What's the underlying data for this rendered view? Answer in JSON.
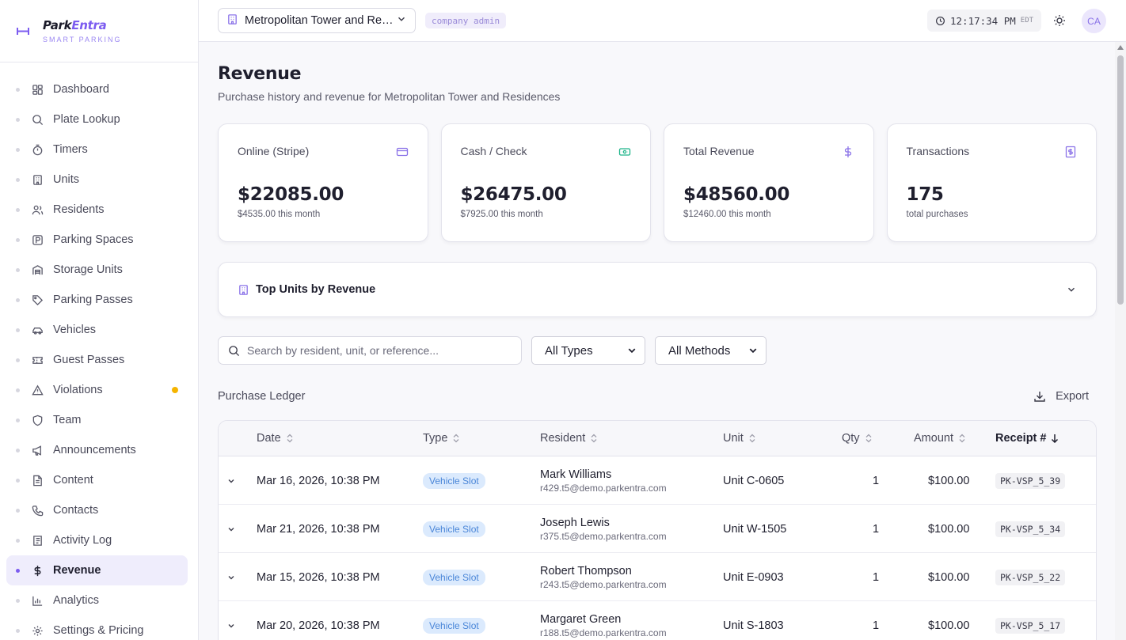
{
  "brand": {
    "name_part1": "Park",
    "name_part2": "Entra",
    "tagline": "SMART PARKING"
  },
  "sidebar": {
    "items": [
      {
        "label": "Dashboard",
        "icon": "dashboard-icon"
      },
      {
        "label": "Plate Lookup",
        "icon": "search-icon"
      },
      {
        "label": "Timers",
        "icon": "timer-icon"
      },
      {
        "label": "Units",
        "icon": "building-icon"
      },
      {
        "label": "Residents",
        "icon": "users-icon"
      },
      {
        "label": "Parking Spaces",
        "icon": "parking-icon"
      },
      {
        "label": "Storage Units",
        "icon": "warehouse-icon"
      },
      {
        "label": "Parking Passes",
        "icon": "tag-icon"
      },
      {
        "label": "Vehicles",
        "icon": "car-icon"
      },
      {
        "label": "Guest Passes",
        "icon": "ticket-icon"
      },
      {
        "label": "Violations",
        "icon": "alert-triangle-icon"
      },
      {
        "label": "Team",
        "icon": "shield-icon"
      },
      {
        "label": "Announcements",
        "icon": "megaphone-icon"
      },
      {
        "label": "Content",
        "icon": "document-icon"
      },
      {
        "label": "Contacts",
        "icon": "phone-icon"
      },
      {
        "label": "Activity Log",
        "icon": "log-icon"
      },
      {
        "label": "Revenue",
        "icon": "dollar-icon"
      },
      {
        "label": "Analytics",
        "icon": "bar-chart-icon"
      },
      {
        "label": "Settings & Pricing",
        "icon": "gear-icon"
      }
    ],
    "active": "Revenue"
  },
  "topbar": {
    "property": "Metropolitan Tower and Residences",
    "role": "company admin",
    "time": "12:17:34 PM",
    "timezone": "EDT",
    "avatar_initials": "CA"
  },
  "page": {
    "title": "Revenue",
    "subtitle": "Purchase history and revenue for Metropolitan Tower and Residences"
  },
  "cards": [
    {
      "title": "Online (Stripe)",
      "value": "$22085.00",
      "sub": "$4535.00 this month",
      "icon": "credit-card-icon"
    },
    {
      "title": "Cash / Check",
      "value": "$26475.00",
      "sub": "$7925.00 this month",
      "icon": "banknote-icon"
    },
    {
      "title": "Total Revenue",
      "value": "$48560.00",
      "sub": "$12460.00 this month",
      "icon": "dollar-icon"
    },
    {
      "title": "Transactions",
      "value": "175",
      "sub": "total purchases",
      "icon": "receipt-icon"
    }
  ],
  "top_units": {
    "label": "Top Units by Revenue"
  },
  "filters": {
    "search_placeholder": "Search by resident, unit, or reference...",
    "type_selected": "All Types",
    "method_selected": "All Methods"
  },
  "ledger": {
    "title": "Purchase Ledger",
    "export_label": "Export",
    "columns": [
      "Date",
      "Type",
      "Resident",
      "Unit",
      "Qty",
      "Amount",
      "Receipt #"
    ],
    "rows": [
      {
        "date": "Mar 16, 2026, 10:38 PM",
        "type": "Vehicle Slot",
        "name": "Mark Williams",
        "email": "r429.t5@demo.parkentra.com",
        "unit": "Unit C-0605",
        "qty": "1",
        "amount": "$100.00",
        "receipt": "PK-VSP_5_39"
      },
      {
        "date": "Mar 21, 2026, 10:38 PM",
        "type": "Vehicle Slot",
        "name": "Joseph Lewis",
        "email": "r375.t5@demo.parkentra.com",
        "unit": "Unit W-1505",
        "qty": "1",
        "amount": "$100.00",
        "receipt": "PK-VSP_5_34"
      },
      {
        "date": "Mar 15, 2026, 10:38 PM",
        "type": "Vehicle Slot",
        "name": "Robert Thompson",
        "email": "r243.t5@demo.parkentra.com",
        "unit": "Unit E-0903",
        "qty": "1",
        "amount": "$100.00",
        "receipt": "PK-VSP_5_22"
      },
      {
        "date": "Mar 20, 2026, 10:38 PM",
        "type": "Vehicle Slot",
        "name": "Margaret Green",
        "email": "r188.t5@demo.parkentra.com",
        "unit": "Unit S-1803",
        "qty": "1",
        "amount": "$100.00",
        "receipt": "PK-VSP_5_17"
      }
    ]
  },
  "colors": {
    "accent": "#7c5cf0",
    "violation_dot": "#f5b400",
    "pill_bg": "#dbeafd",
    "pill_text": "#4a86d8"
  }
}
